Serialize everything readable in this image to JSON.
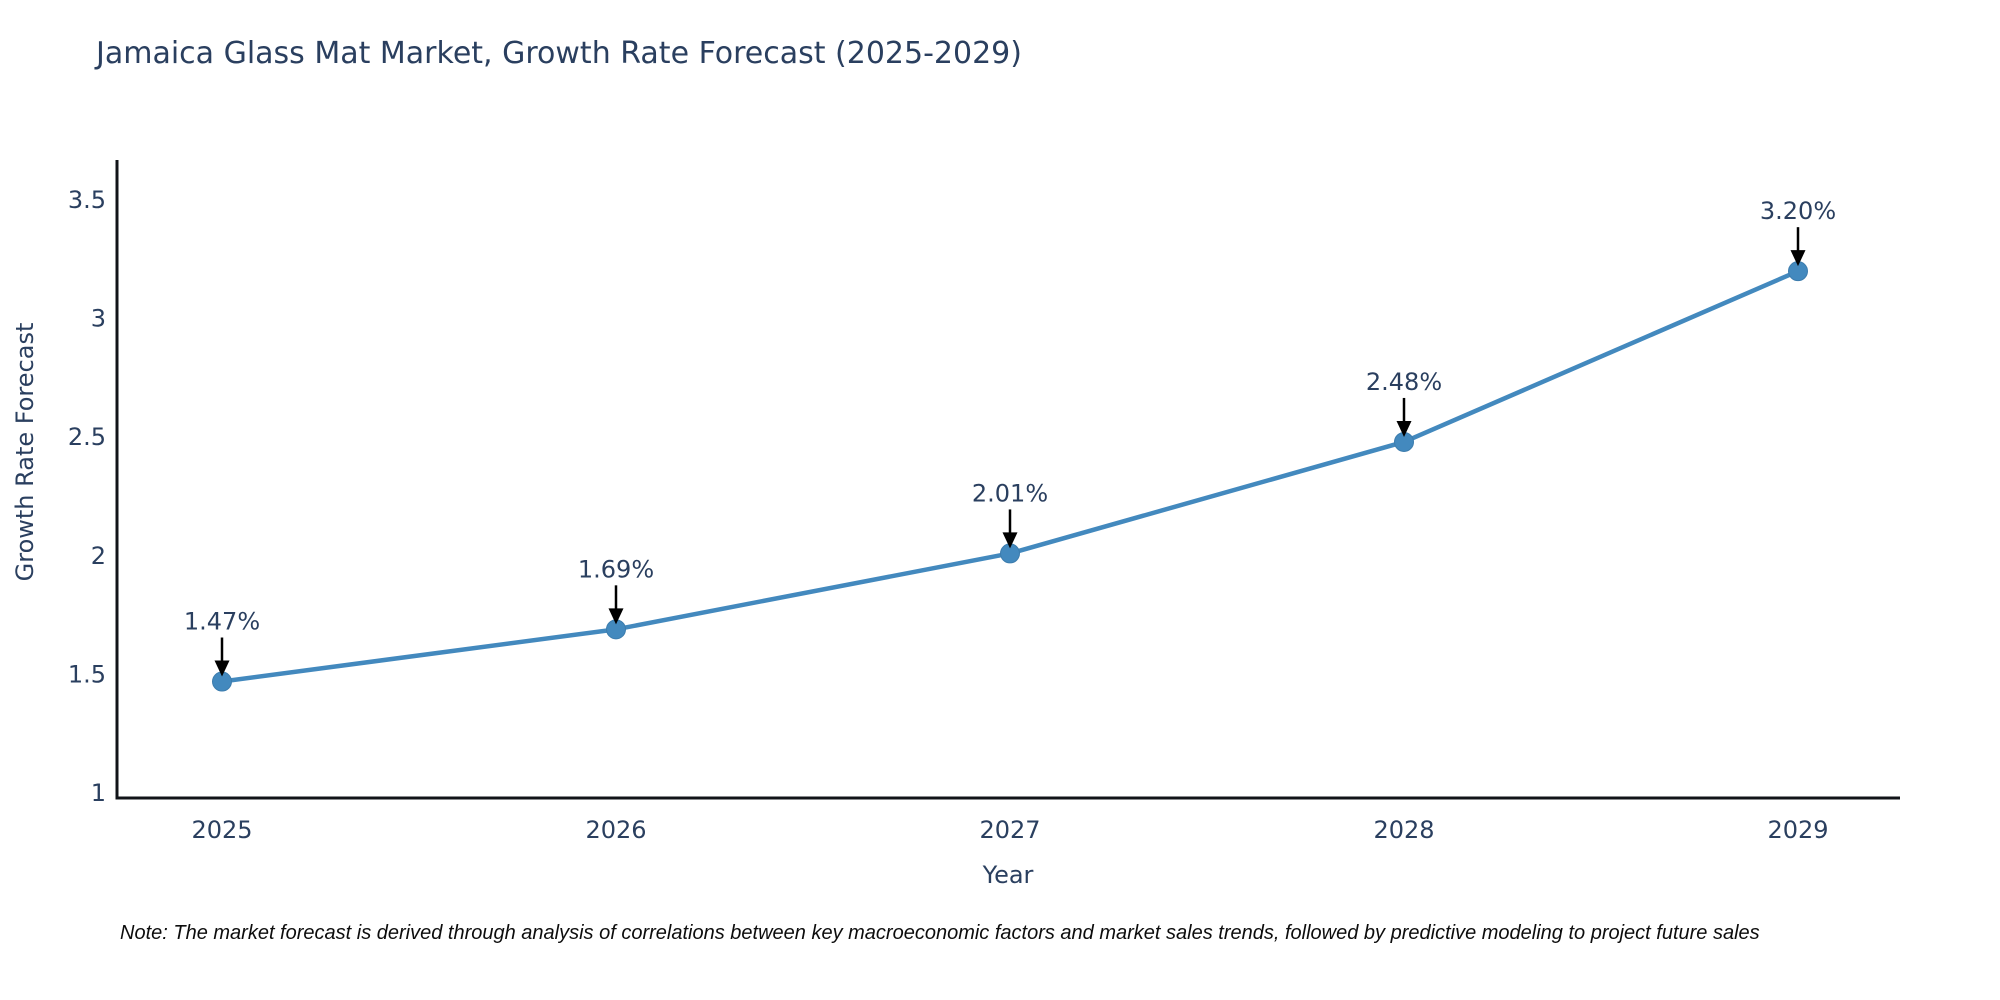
{
  "page": {
    "title": "Jamaica Glass Mat Market, Growth Rate Forecast (2025-2029)",
    "note": "Note: The market forecast is derived through analysis of correlations between key macroeconomic factors and market sales trends, followed by predictive modeling to project future sales"
  },
  "chart_data": {
    "type": "line",
    "title": "Jamaica Glass Mat Market, Growth Rate Forecast (2025-2029)",
    "xlabel": "Year",
    "ylabel": "Growth Rate Forecast",
    "x": [
      2025,
      2026,
      2027,
      2028,
      2029
    ],
    "series": [
      {
        "name": "Growth Rate Forecast",
        "values": [
          1.47,
          1.69,
          2.01,
          2.48,
          3.2
        ],
        "point_labels": [
          "1.47%",
          "1.69%",
          "2.01%",
          "2.48%",
          "3.20%"
        ]
      }
    ],
    "xticks": [
      "2025",
      "2026",
      "2027",
      "2028",
      "2029"
    ],
    "yticks": [
      "1",
      "1.5",
      "2",
      "2.5",
      "3",
      "3.5"
    ],
    "ylim": [
      1,
      3.5
    ],
    "grid": false,
    "legend": "none",
    "line_color": "#4389be",
    "marker_color": "#4389be",
    "marker_edge_color": "#3c7cad",
    "arrow_color": "#000000",
    "axis_color": "#111418",
    "text_color": "#2a3f5f"
  }
}
